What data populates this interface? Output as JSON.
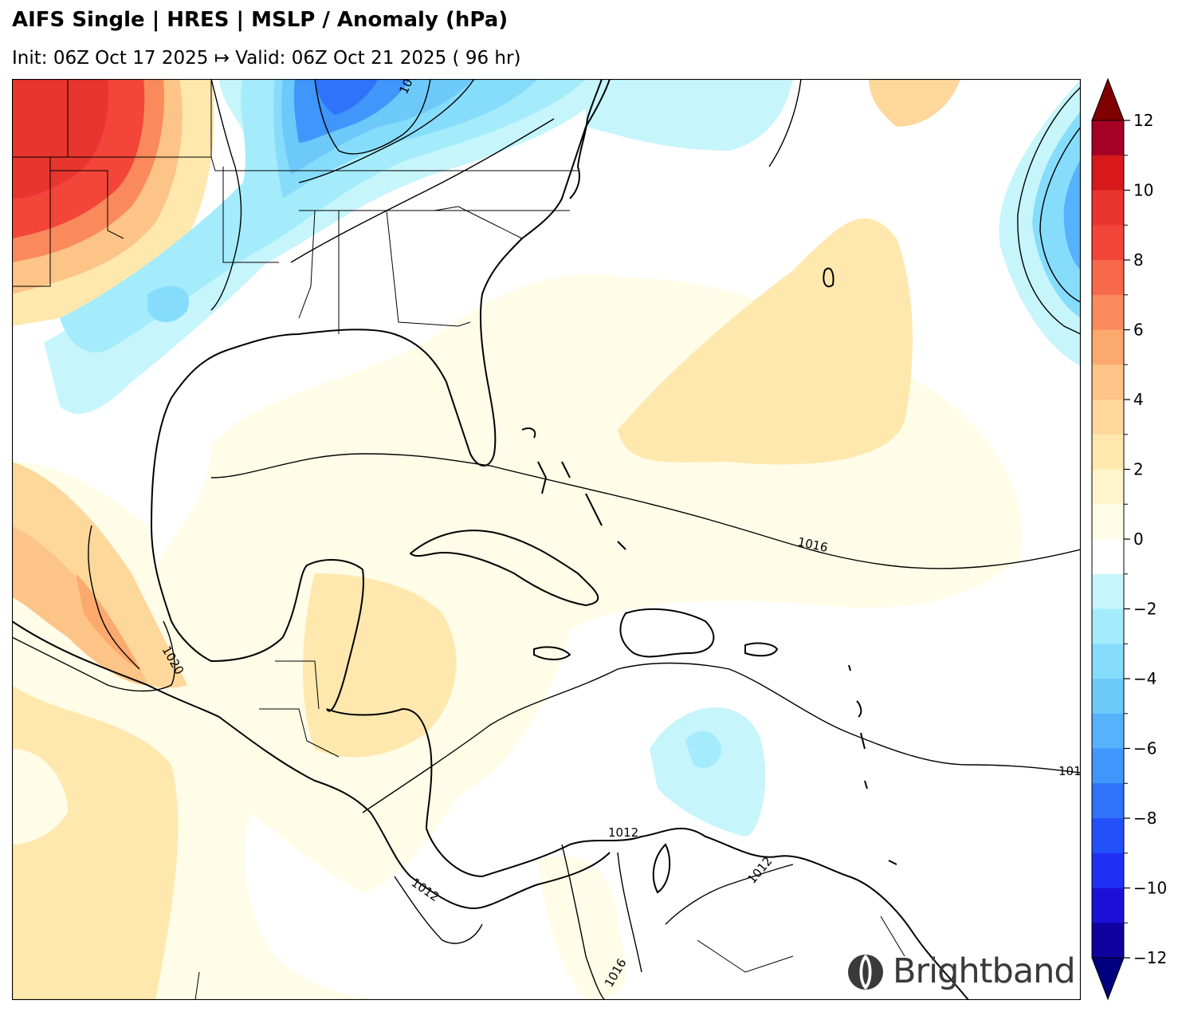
{
  "title": "AIFS Single | HRES | MSLP / Anomaly (hPa)",
  "subtitle": "Init: 06Z Oct 17 2025 ↦ Valid: 06Z Oct 21 2025 ( 96 hr)",
  "colorbar": {
    "labels": [
      "12",
      "10",
      "8",
      "6",
      "4",
      "2",
      "0",
      "−2",
      "−4",
      "−6",
      "−8",
      "−10",
      "−12"
    ],
    "levels": [
      12,
      11,
      10,
      9,
      8,
      7,
      6,
      5,
      4,
      3,
      2,
      1,
      -1,
      -2,
      -3,
      -4,
      -5,
      -6,
      -7,
      -8,
      -9,
      -10,
      -11,
      -12
    ],
    "colors": [
      "#a50026",
      "#d7191c",
      "#e8352f",
      "#f4453a",
      "#f7694a",
      "#fa8a5c",
      "#fca96e",
      "#fdc487",
      "#fed79a",
      "#fee8ad",
      "#fff5cc",
      "#fffce8",
      "#ffffff",
      "#c6f5fb",
      "#a4ecfb",
      "#86dcfb",
      "#6ec9fb",
      "#56b2fb",
      "#4096fb",
      "#2f73fa",
      "#2450fa",
      "#1f2ff3",
      "#1c10d8",
      "#10009e"
    ],
    "over_color": "#800000",
    "under_color": "#00007f"
  },
  "contour_labels": [
    "1016",
    "1020",
    "1012",
    "1012",
    "1012",
    "1016",
    "101",
    "101"
  ],
  "logo": {
    "text": "Brightband",
    "icon": "brightband-logo-icon"
  }
}
